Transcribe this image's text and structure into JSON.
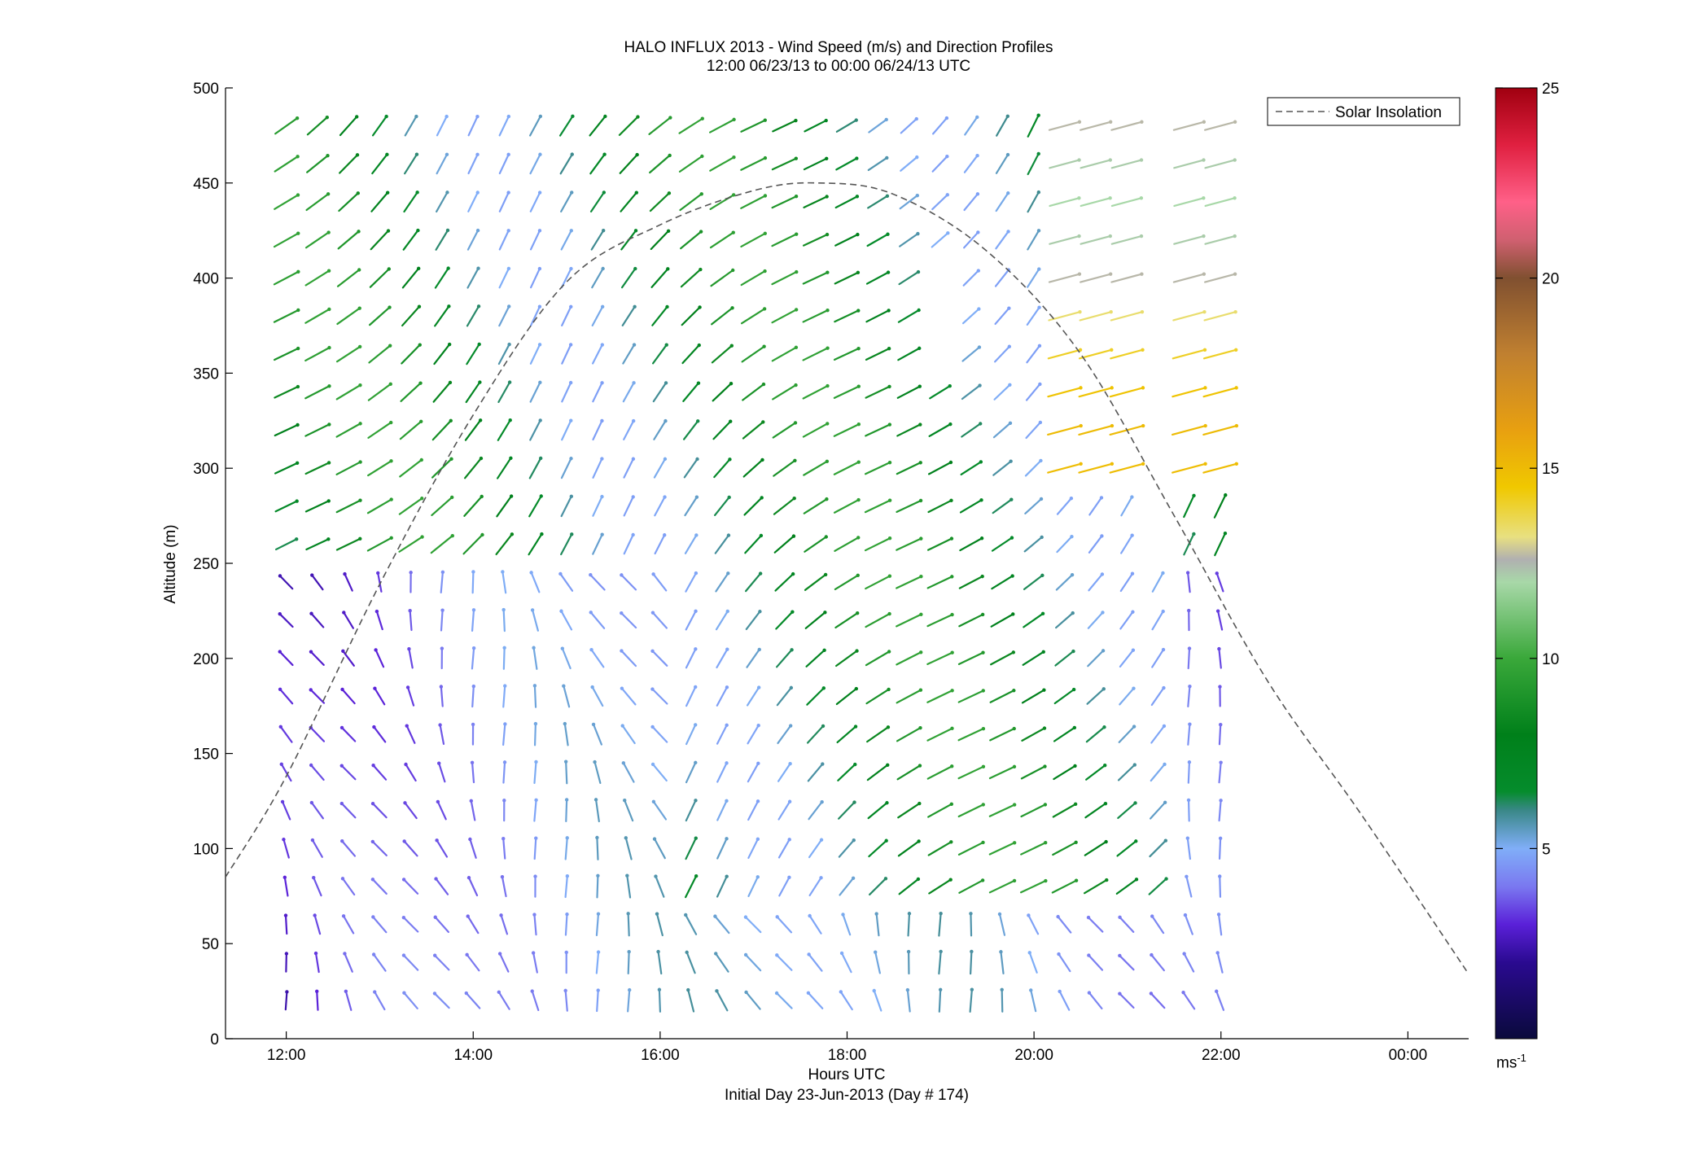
{
  "chart_data": {
    "type": "quiver",
    "title": "HALO INFLUX 2013 - Wind Speed (m/s) and Direction Profiles",
    "subtitle": "12:00 06/23/13 to 00:00 06/24/13  UTC",
    "xlabel": "Hours UTC",
    "xlabel2": "Initial Day 23-Jun-2013 (Day # 174)",
    "ylabel": "Altitude (m)",
    "xlim": [
      11.35,
      24.65
    ],
    "ylim": [
      0,
      500
    ],
    "x_ticks": [
      {
        "value": 12,
        "label": "12:00"
      },
      {
        "value": 14,
        "label": "14:00"
      },
      {
        "value": 16,
        "label": "16:00"
      },
      {
        "value": 18,
        "label": "18:00"
      },
      {
        "value": 20,
        "label": "20:00"
      },
      {
        "value": 22,
        "label": "22:00"
      },
      {
        "value": 24,
        "label": "00:00"
      }
    ],
    "y_ticks": [
      0,
      50,
      100,
      150,
      200,
      250,
      300,
      350,
      400,
      450,
      500
    ],
    "colorbar": {
      "min": 0,
      "max": 25,
      "ticks": [
        5,
        10,
        15,
        20,
        25
      ],
      "unit": "ms",
      "unit_exponent": "-1",
      "stops": [
        [
          0,
          "#0a0a3c"
        ],
        [
          2,
          "#2a0a90"
        ],
        [
          3,
          "#5a20d8"
        ],
        [
          4,
          "#7a78f0"
        ],
        [
          5,
          "#80aef8"
        ],
        [
          6,
          "#3a8888"
        ],
        [
          6.5,
          "#058c2c"
        ],
        [
          8,
          "#00801a"
        ],
        [
          10,
          "#3aa83a"
        ],
        [
          12,
          "#a8d8a8"
        ],
        [
          12.6,
          "#b0b0b0"
        ],
        [
          13.2,
          "#e8e080"
        ],
        [
          14.5,
          "#f0c800"
        ],
        [
          16,
          "#e8a010"
        ],
        [
          18,
          "#c08030"
        ],
        [
          20,
          "#805030"
        ],
        [
          21,
          "#d06070"
        ],
        [
          22,
          "#ff6088"
        ],
        [
          23.5,
          "#e02040"
        ],
        [
          25,
          "#a00010"
        ]
      ]
    },
    "legend": {
      "label": "Solar Insolation",
      "position": "top-right",
      "style": "dashed"
    },
    "solar_curve": [
      [
        11.35,
        85
      ],
      [
        12.0,
        138
      ],
      [
        13.0,
        239
      ],
      [
        14.0,
        328
      ],
      [
        15.0,
        398
      ],
      [
        16.0,
        428
      ],
      [
        17.0,
        446
      ],
      [
        17.7,
        450
      ],
      [
        18.5,
        444
      ],
      [
        19.5,
        414
      ],
      [
        20.5,
        360
      ],
      [
        21.5,
        275
      ],
      [
        22.5,
        188
      ],
      [
        23.5,
        118
      ],
      [
        24.65,
        34
      ]
    ],
    "wind_grid": {
      "altitudes": [
        20,
        40,
        60,
        80,
        100,
        120,
        140,
        160,
        180,
        200,
        220,
        240,
        260,
        280,
        300,
        320,
        340,
        360,
        380,
        400,
        420,
        440,
        460,
        480
      ],
      "time_start": 12.0,
      "time_step": 0.333,
      "columns": 31,
      "note": "arrow direction (deg, from-north) and speed (m/s) per cell; estimated from the image"
    }
  }
}
